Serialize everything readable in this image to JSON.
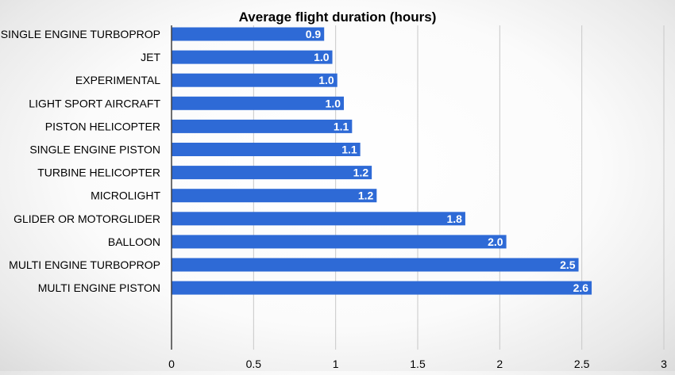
{
  "chart_data": {
    "type": "bar",
    "orientation": "horizontal",
    "title": "Average flight duration (hours)",
    "xlabel": "",
    "ylabel": "",
    "categories": [
      "SINGLE ENGINE TURBOPROP",
      "JET",
      "EXPERIMENTAL",
      "LIGHT SPORT AIRCRAFT",
      "PISTON HELICOPTER",
      "SINGLE ENGINE PISTON",
      "TURBINE HELICOPTER",
      "MICROLIGHT",
      "GLIDER OR MOTORGLIDER",
      "BALLOON",
      "MULTI ENGINE TURBOPROP",
      "MULTI ENGINE PISTON"
    ],
    "values": [
      0.93,
      0.98,
      1.01,
      1.05,
      1.1,
      1.15,
      1.22,
      1.25,
      1.79,
      2.04,
      2.48,
      2.56
    ],
    "data_labels": [
      "0.9",
      "1.0",
      "1.0",
      "1.0",
      "1.1",
      "1.1",
      "1.2",
      "1.2",
      "1.8",
      "2.0",
      "2.5",
      "2.6"
    ],
    "xlim": [
      0,
      3
    ],
    "x_ticks": [
      "0",
      "0.5",
      "1",
      "1.5",
      "2",
      "2.5",
      "3"
    ],
    "bar_color": "#2e6ad6",
    "grid": true,
    "legend": "none"
  }
}
